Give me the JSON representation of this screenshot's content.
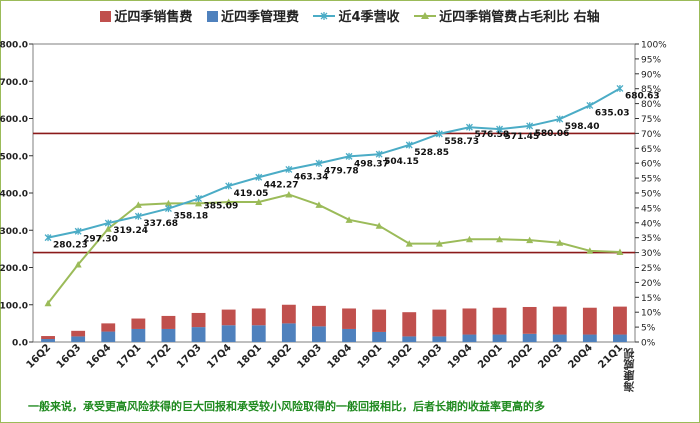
{
  "chart_data": {
    "type": "bar",
    "legend_position": "top",
    "legend": [
      {
        "key": "sales",
        "label": "近四季销售费",
        "color": "#c0504d"
      },
      {
        "key": "mgmt",
        "label": "近四季管理费",
        "color": "#4f81bd"
      },
      {
        "key": "revenue",
        "label": "近4季营收",
        "color": "#4bacc6"
      },
      {
        "key": "ratio",
        "label": "近四季销管费占毛利比 右轴",
        "color": "#9bbb59"
      }
    ],
    "categories": [
      "16Q2",
      "16Q3",
      "16Q4",
      "17Q1",
      "17Q2",
      "17Q3",
      "17Q4",
      "18Q1",
      "18Q2",
      "18Q3",
      "18Q4",
      "19Q1",
      "19Q2",
      "19Q3",
      "19Q4",
      "20Q1",
      "20Q2",
      "20Q3",
      "20Q4",
      "21Q1"
    ],
    "left_axis": {
      "min": 0,
      "max": 800,
      "step": 100,
      "tick_labels": [
        "0.0",
        "100.0",
        "200.0",
        "300.0",
        "400.0",
        "500.0",
        "600.0",
        "700.0",
        "800.0"
      ]
    },
    "right_axis": {
      "min": 0,
      "max": 100,
      "step": 5,
      "tick_labels": [
        "0%",
        "5%",
        "10%",
        "15%",
        "20%",
        "25%",
        "30%",
        "35%",
        "40%",
        "45%",
        "50%",
        "55%",
        "60%",
        "65%",
        "70%",
        "75%",
        "80%",
        "85%",
        "90%",
        "95%",
        "100%"
      ]
    },
    "series": [
      {
        "name": "近四季销售费",
        "type": "stacked-bar",
        "axis": "left",
        "values": [
          8,
          15,
          22,
          28,
          35,
          38,
          42,
          45,
          50,
          55,
          55,
          60,
          65,
          72,
          70,
          72,
          72,
          75,
          72,
          75
        ]
      },
      {
        "name": "近四季管理费",
        "type": "stacked-bar",
        "axis": "left",
        "values": [
          8,
          15,
          28,
          35,
          35,
          40,
          45,
          45,
          50,
          42,
          35,
          27,
          15,
          15,
          20,
          20,
          22,
          20,
          20,
          20
        ]
      },
      {
        "name": "近4季营收",
        "type": "line",
        "axis": "left",
        "values": [
          280.23,
          297.3,
          319.24,
          337.68,
          358.18,
          385.09,
          419.05,
          442.27,
          463.34,
          479.78,
          498.37,
          504.15,
          528.85,
          558.73,
          576.58,
          571.45,
          580.06,
          598.4,
          635.03,
          680.63
        ],
        "labels": [
          "280.23",
          "297.30",
          "319.24",
          "337.68",
          "358.18",
          "385.09",
          "419.05",
          "442.27",
          "463.34",
          "479.78",
          "498.37",
          "504.15",
          "528.85",
          "558.73",
          "576.58",
          "571.45",
          "580.06",
          "598.40",
          "635.03",
          "680.63"
        ]
      },
      {
        "name": "近四季销管费占毛利比 右轴",
        "type": "line",
        "axis": "right",
        "values": [
          13,
          26,
          38,
          46,
          46.5,
          46.5,
          47,
          47,
          49.5,
          46,
          41,
          39,
          33,
          33,
          34.5,
          34.5,
          34.2,
          33.3,
          30.6,
          30.2
        ]
      }
    ],
    "reference_lines": [
      560,
      240
    ],
    "footnote": "一般来说，承受更高风险获得的巨大回报和承受较小风险取得的一般回报相比，后者长期的收益率更高的多",
    "watermark": "海康威视"
  }
}
